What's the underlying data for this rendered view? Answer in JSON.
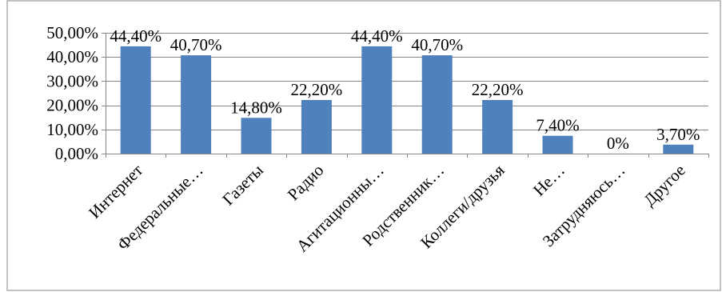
{
  "chart_data": {
    "type": "bar",
    "title": "",
    "xlabel": "",
    "ylabel": "",
    "ylim": [
      0,
      50
    ],
    "y_tick_values": [
      0,
      10,
      20,
      30,
      40,
      50
    ],
    "y_tick_labels": [
      "0,00%",
      "10,00%",
      "20,00%",
      "30,00%",
      "40,00%",
      "50,00%"
    ],
    "grid": true,
    "legend": "none",
    "categories": [
      "Интернет",
      "Федеральные…",
      "Газеты",
      "Радио",
      "Агитационны…",
      "Родственник…",
      "Коллеги/друзья",
      "Не…",
      "Затрудняюсь…",
      "Другое"
    ],
    "values": [
      44.4,
      40.7,
      14.8,
      22.2,
      44.4,
      40.7,
      22.2,
      7.4,
      0,
      3.7
    ],
    "data_labels": [
      "44,40%",
      "40,70%",
      "14,80%",
      "22,20%",
      "44,40%",
      "40,70%",
      "22,20%",
      "7,40%",
      "0%",
      "3,70%"
    ],
    "colors": {
      "bar": "#4f81bd",
      "grid": "#868686",
      "axis": "#868686",
      "frame": "#868686"
    }
  }
}
